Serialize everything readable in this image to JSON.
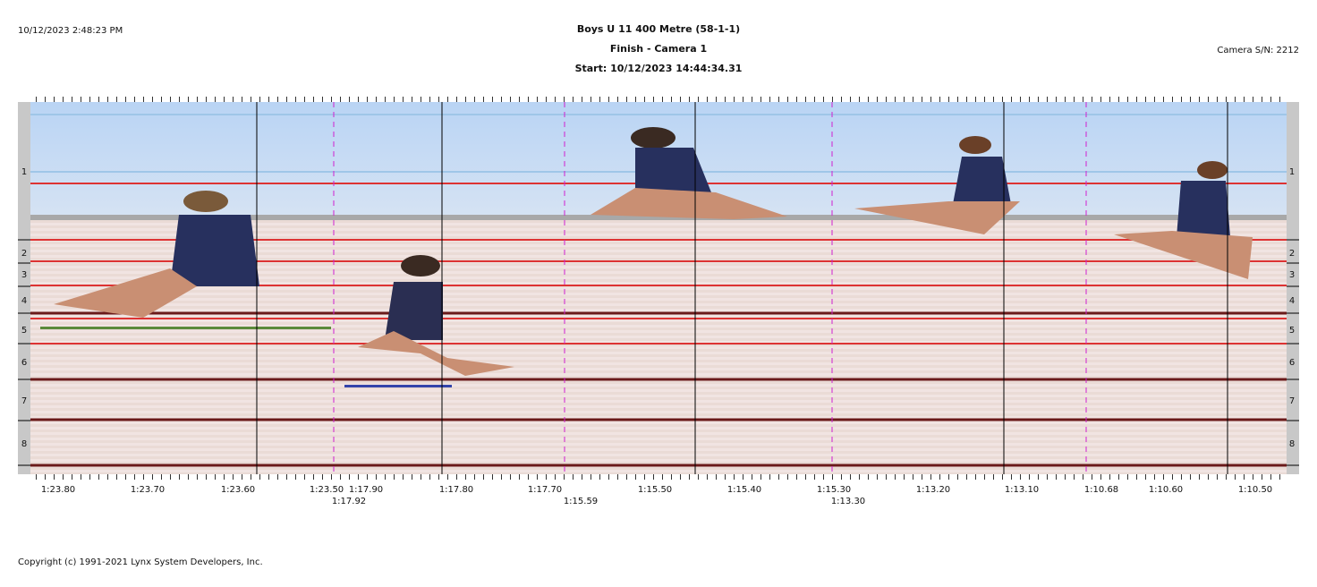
{
  "header": {
    "timestamp": "10/12/2023 2:48:23 PM",
    "title": "Boys U 11 400 Metre (58-1-1)",
    "subtitle": "Finish - Camera 1",
    "start": "Start: 10/12/2023 14:44:34.31",
    "camera": "Camera S/N: 2212"
  },
  "lanes": [
    "1",
    "2",
    "3",
    "4",
    "5",
    "6",
    "7",
    "8"
  ],
  "time_axis": {
    "row1": [
      "1:23.80",
      "1:23.70",
      "1:23.60",
      "1:23.50",
      "1:17.90",
      "1:17.80",
      "1:17.70",
      "1:15.50",
      "1:15.40",
      "1:15.30",
      "1:13.20",
      "1:13.10",
      "1:10.68",
      "1:10.60",
      "1:10.50"
    ],
    "row2": [
      "1:17.92",
      "1:15.59",
      "1:13.30"
    ]
  },
  "footer": {
    "copyright": "Copyright (c) 1991-2021 Lynx System Developers, Inc."
  }
}
